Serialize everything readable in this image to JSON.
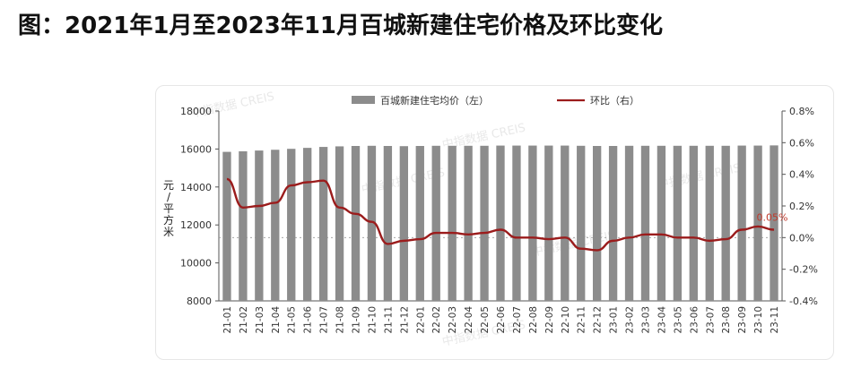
{
  "title": "图：2021年1月至2023年11月百城新建住宅价格及环比变化",
  "chart_data": {
    "type": "bar+line",
    "categories": [
      "21-01",
      "21-02",
      "21-03",
      "21-04",
      "21-05",
      "21-06",
      "21-07",
      "21-08",
      "21-09",
      "21-10",
      "21-11",
      "21-12",
      "22-01",
      "22-02",
      "22-03",
      "22-04",
      "22-05",
      "22-06",
      "22-07",
      "22-08",
      "22-09",
      "22-10",
      "22-11",
      "22-12",
      "23-01",
      "23-02",
      "23-03",
      "23-04",
      "23-05",
      "23-06",
      "23-07",
      "23-08",
      "23-09",
      "23-10",
      "23-11"
    ],
    "ylabel": "元/平方米",
    "y_left": {
      "min": 8000,
      "max": 18000,
      "ticks": [
        "8000",
        "10000",
        "12000",
        "14000",
        "16000",
        "18000"
      ]
    },
    "y_right": {
      "min": -0.4,
      "max": 0.8,
      "ticks": [
        "-0.4%",
        "-0.2%",
        "0.0%",
        "0.2%",
        "0.4%",
        "0.6%",
        "0.8%"
      ]
    },
    "series": [
      {
        "name": "百城新建住宅均价（左）",
        "type": "bar",
        "color": "#8c8c8c",
        "axis": "left",
        "values": [
          15850,
          15880,
          15920,
          15960,
          16010,
          16060,
          16110,
          16140,
          16160,
          16170,
          16160,
          16150,
          16160,
          16170,
          16170,
          16170,
          16170,
          16180,
          16180,
          16180,
          16180,
          16180,
          16170,
          16160,
          16160,
          16170,
          16170,
          16170,
          16170,
          16170,
          16170,
          16170,
          16180,
          16180,
          16190
        ]
      },
      {
        "name": "环比（右）",
        "type": "line",
        "color": "#9b1c1c",
        "axis": "right",
        "values": [
          0.37,
          0.19,
          0.2,
          0.22,
          0.33,
          0.35,
          0.36,
          0.19,
          0.15,
          0.1,
          -0.04,
          -0.02,
          -0.01,
          0.03,
          0.03,
          0.02,
          0.03,
          0.05,
          0.0,
          0.0,
          -0.01,
          0.0,
          -0.07,
          -0.08,
          -0.02,
          0.0,
          0.02,
          0.02,
          0.0,
          0.0,
          -0.02,
          -0.01,
          0.05,
          0.07,
          0.05
        ]
      }
    ],
    "annotations": [
      {
        "text": "0.05%",
        "index": 34,
        "color": "#c0392b"
      }
    ],
    "watermark": "中指数据 CREIS",
    "legend_position": "top"
  }
}
